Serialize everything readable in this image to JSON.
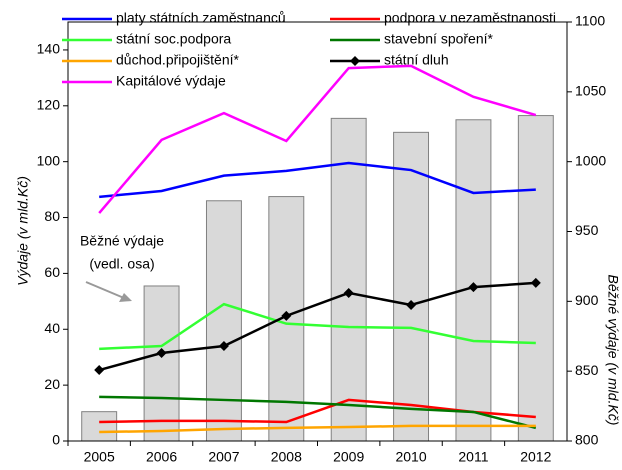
{
  "chart_data": {
    "type": "bar-line",
    "categories": [
      "2005",
      "2006",
      "2007",
      "2008",
      "2009",
      "2010",
      "2011",
      "2012"
    ],
    "ylabel": "Výdaje (v mld.Kč)",
    "y2label": "Běžné výdaje (v mld.Kč)",
    "ylim": [
      0,
      150
    ],
    "yticks": [
      0,
      20,
      40,
      60,
      80,
      100,
      120,
      140
    ],
    "y2lim": [
      800,
      1100
    ],
    "y2ticks": [
      800,
      850,
      900,
      950,
      1000,
      1050,
      1100
    ],
    "annotation": [
      "Běžné výdaje",
      "(vedl. osa)"
    ],
    "bars": {
      "axis": "y2",
      "color": "#d9d9d9",
      "values": [
        821,
        911,
        972,
        975,
        1031,
        1021,
        1030,
        1033
      ]
    },
    "series": [
      {
        "name": "platy státních zaměstnanců",
        "color": "#0000ff",
        "values": [
          87.4,
          89.5,
          95,
          96.7,
          99.5,
          97,
          88.8,
          90
        ]
      },
      {
        "name": "podpora v nezaměstnanosti",
        "color": "#ff0000",
        "values": [
          6.8,
          7.2,
          7.2,
          6.8,
          14.7,
          12.9,
          10.4,
          8.6
        ]
      },
      {
        "name": "státní soc.podpora",
        "color": "#33ff33",
        "values": [
          33,
          34,
          49,
          42,
          40.8,
          40.5,
          35.8,
          35.1
        ]
      },
      {
        "name": "stavební spoření*",
        "color": "#007700",
        "values": [
          15.8,
          15.4,
          14.7,
          14,
          12.9,
          11.5,
          10.4,
          4.7
        ]
      },
      {
        "name": "důchod.připojištění*",
        "color": "#ffa500",
        "values": [
          3.2,
          3.6,
          4.3,
          4.7,
          5,
          5.4,
          5.4,
          5.4
        ]
      },
      {
        "name": "státní dluh",
        "color": "#000000",
        "marker": "diamond",
        "values": [
          25.4,
          31.5,
          34,
          44.8,
          53,
          48.7,
          55.1,
          56.6
        ]
      },
      {
        "name": "Kapitálové výdaje",
        "color": "#ff00ff",
        "values": [
          81.6,
          107.8,
          117.4,
          107.4,
          133.5,
          134.3,
          123.2,
          116.7
        ]
      }
    ]
  }
}
